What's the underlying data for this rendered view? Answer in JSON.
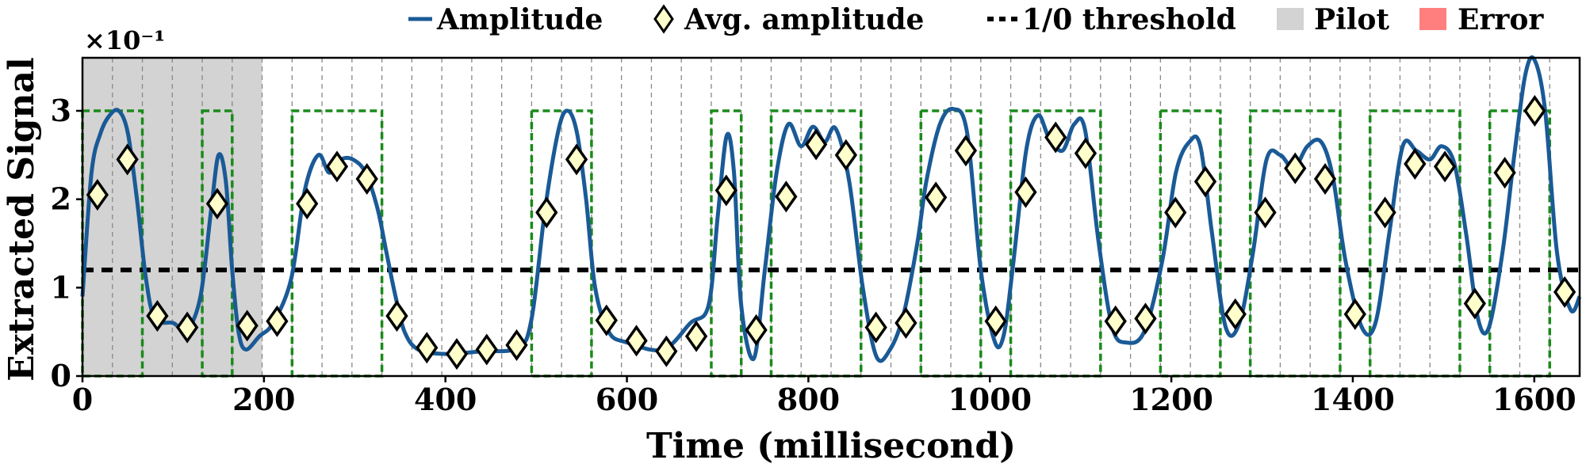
{
  "chart_data": {
    "type": "line",
    "title": "",
    "xlabel": "Time (millisecond)",
    "ylabel": "Extracted Signal",
    "y_multiplier": "×10⁻¹",
    "xlim": [
      0,
      1650
    ],
    "ylim": [
      0,
      3.6
    ],
    "xticks": [
      0,
      200,
      400,
      600,
      800,
      1000,
      1200,
      1400,
      1600
    ],
    "yticks": [
      0,
      1,
      2,
      3
    ],
    "threshold": 1.2,
    "pilot_range": [
      0,
      198
    ],
    "legend": {
      "placement": "top",
      "entries": [
        "Amplitude",
        "Avg. amplitude",
        "1/0 threshold",
        "Pilot",
        "Error"
      ]
    },
    "colors": {
      "amplitude": "#1a5a96",
      "marker_fill": "#ffffcc",
      "threshold": "#000000",
      "pilot": "#d3d3d3",
      "error": "#ff7f7f",
      "bit_box": "#1a8a1a",
      "grid": "#888888"
    },
    "bit_boundaries": [
      0,
      66,
      132,
      165,
      231,
      330,
      495,
      561,
      693,
      726,
      759,
      858,
      924,
      990,
      1023,
      1122,
      1188,
      1254,
      1287,
      1386,
      1419,
      1518,
      1551,
      1617
    ],
    "one_bits": [
      [
        0,
        66
      ],
      [
        132,
        165
      ],
      [
        231,
        330
      ],
      [
        495,
        561
      ],
      [
        693,
        726
      ],
      [
        759,
        858
      ],
      [
        924,
        990
      ],
      [
        1023,
        1122
      ],
      [
        1188,
        1254
      ],
      [
        1287,
        1386
      ],
      [
        1419,
        1518
      ],
      [
        1551,
        1617
      ]
    ],
    "amplitude": {
      "name": "Amplitude",
      "x": [
        0,
        10,
        20,
        30,
        40,
        50,
        60,
        70,
        80,
        100,
        115,
        130,
        142,
        150,
        158,
        165,
        172,
        180,
        195,
        210,
        230,
        245,
        260,
        272,
        285,
        298,
        312,
        325,
        335,
        345,
        355,
        370,
        400,
        440,
        480,
        495,
        510,
        525,
        535,
        545,
        555,
        565,
        580,
        600,
        640,
        670,
        690,
        700,
        710,
        718,
        726,
        740,
        752,
        765,
        778,
        792,
        805,
        818,
        830,
        845,
        860,
        875,
        890,
        905,
        920,
        930,
        945,
        960,
        975,
        990,
        1005,
        1015,
        1025,
        1040,
        1053,
        1065,
        1080,
        1093,
        1105,
        1120,
        1135,
        1150,
        1170,
        1190,
        1205,
        1220,
        1232,
        1245,
        1260,
        1275,
        1290,
        1305,
        1320,
        1335,
        1350,
        1365,
        1378,
        1392,
        1410,
        1425,
        1440,
        1455,
        1470,
        1485,
        1498,
        1512,
        1525,
        1538,
        1550,
        1565,
        1578,
        1590,
        1600,
        1612,
        1625,
        1640,
        1650
      ],
      "y": [
        0.9,
        2.3,
        2.75,
        2.95,
        3.0,
        2.75,
        2.0,
        1.1,
        0.65,
        0.6,
        0.52,
        0.9,
        1.9,
        2.5,
        2.2,
        1.2,
        0.5,
        0.3,
        0.45,
        0.6,
        1.1,
        2.1,
        2.5,
        2.3,
        2.45,
        2.45,
        2.3,
        1.9,
        1.4,
        0.9,
        0.5,
        0.3,
        0.25,
        0.28,
        0.32,
        0.65,
        1.9,
        2.8,
        3.0,
        2.75,
        2.0,
        1.0,
        0.5,
        0.38,
        0.3,
        0.6,
        0.8,
        1.8,
        2.72,
        2.3,
        0.8,
        0.2,
        1.2,
        2.3,
        2.85,
        2.6,
        2.82,
        2.65,
        2.8,
        2.2,
        1.0,
        0.22,
        0.3,
        0.7,
        1.5,
        2.2,
        2.85,
        3.02,
        2.75,
        1.2,
        0.4,
        0.45,
        1.2,
        2.55,
        2.95,
        2.7,
        2.55,
        2.85,
        2.78,
        1.5,
        0.55,
        0.38,
        0.5,
        1.3,
        2.3,
        2.65,
        2.6,
        1.6,
        0.55,
        0.6,
        1.4,
        2.45,
        2.5,
        2.35,
        2.6,
        2.65,
        2.25,
        1.3,
        0.55,
        0.6,
        1.6,
        2.6,
        2.55,
        2.45,
        2.6,
        2.4,
        1.6,
        0.65,
        0.55,
        1.4,
        2.5,
        3.4,
        3.58,
        3.0,
        1.4,
        0.75,
        0.9
      ]
    },
    "avg_amplitude": {
      "name": "Avg. amplitude",
      "x": [
        16.5,
        49.5,
        82.5,
        115.5,
        148.5,
        181.5,
        214.5,
        247.5,
        280.5,
        313.5,
        346.5,
        379.5,
        412.5,
        445.5,
        478.5,
        511.5,
        544.5,
        577.5,
        610.5,
        643.5,
        676.5,
        709.5,
        742.5,
        775.5,
        808.5,
        841.5,
        874.5,
        907.5,
        940.5,
        973.5,
        1006.5,
        1039.5,
        1072.5,
        1105.5,
        1138.5,
        1171.5,
        1204.5,
        1237.5,
        1270.5,
        1303.5,
        1336.5,
        1369.5,
        1402.5,
        1435.5,
        1468.5,
        1501.5,
        1534.5,
        1567.5,
        1600.5,
        1633.5
      ],
      "y": [
        2.05,
        2.45,
        0.68,
        0.55,
        1.95,
        0.57,
        0.62,
        1.95,
        2.37,
        2.23,
        0.68,
        0.32,
        0.25,
        0.3,
        0.35,
        1.85,
        2.45,
        0.63,
        0.4,
        0.28,
        0.45,
        2.1,
        0.52,
        2.03,
        2.62,
        2.5,
        0.55,
        0.6,
        2.02,
        2.55,
        0.62,
        2.08,
        2.7,
        2.52,
        0.62,
        0.65,
        1.85,
        2.2,
        0.7,
        1.85,
        2.35,
        2.23,
        0.7,
        1.85,
        2.4,
        2.37,
        0.82,
        2.3,
        3.0,
        0.95
      ]
    }
  }
}
